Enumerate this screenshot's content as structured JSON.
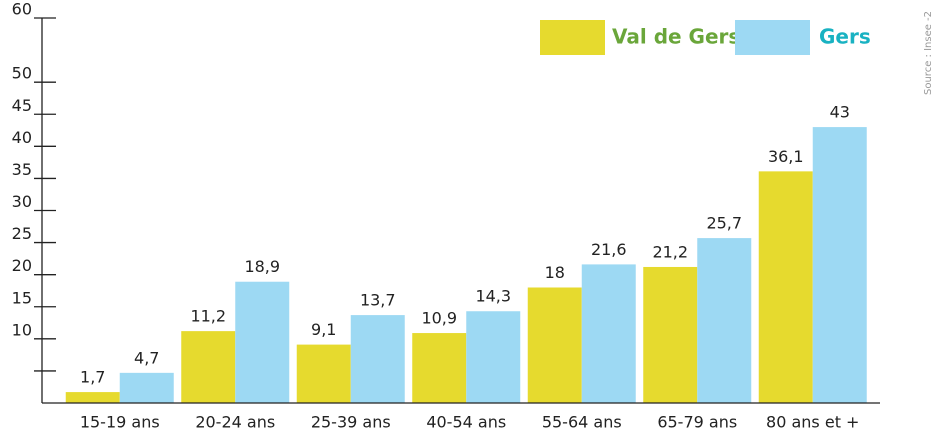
{
  "chart_data": {
    "type": "bar",
    "categories": [
      "15-19 ans",
      "20-24 ans",
      "25-39 ans",
      "40-54 ans",
      "55-64 ans",
      "65-79 ans",
      "80 ans et +"
    ],
    "series": [
      {
        "name": "Val de Gers",
        "color": "#e6da2e",
        "legend_color": "#6aa63a",
        "values": [
          1.7,
          11.2,
          9.1,
          10.9,
          18,
          21.2,
          36.1
        ],
        "value_labels": [
          "1,7",
          "11,2",
          "9,1",
          "10,9",
          "18",
          "21,2",
          "36,1"
        ]
      },
      {
        "name": "Gers",
        "color": "#9dd9f3",
        "legend_color": "#19b2c2",
        "values": [
          4.7,
          18.9,
          13.7,
          14.3,
          21.6,
          25.7,
          43
        ],
        "value_labels": [
          "4,7",
          "18,9",
          "13,7",
          "14,3",
          "21,6",
          "25,7",
          "43"
        ]
      }
    ],
    "ylim": [
      0,
      60
    ],
    "yticks": [
      10,
      15,
      20,
      25,
      30,
      35,
      40,
      45,
      50,
      60
    ],
    "minor_yticks": [
      5
    ],
    "legend": "top-right",
    "source": "Source : Insee -2"
  }
}
